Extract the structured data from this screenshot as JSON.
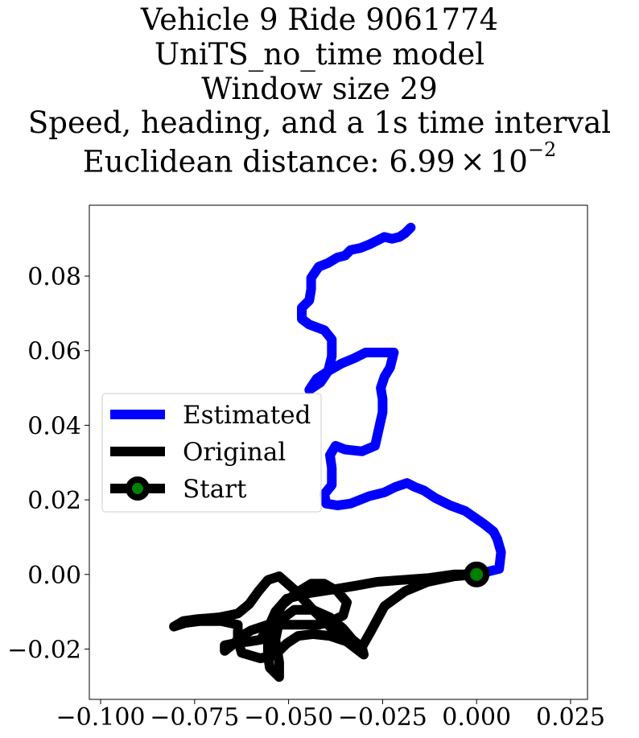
{
  "chart_data": {
    "type": "line",
    "title_lines": [
      "Vehicle 9 Ride 9061774",
      "UniTS_no_time model",
      "Window size 29",
      "Speed, heading, and a 1s time interval",
      "Euclidean distance: "
    ],
    "distance_mantissa": "6.99",
    "distance_times": "×",
    "distance_base": "10",
    "distance_exponent": "−2",
    "xlim": [
      -0.103,
      0.0295
    ],
    "ylim": [
      -0.0335,
      0.099
    ],
    "xticks": [
      -0.1,
      -0.075,
      -0.05,
      -0.025,
      0.0,
      0.025
    ],
    "xtick_labels": [
      "−0.100",
      "−0.075",
      "−0.050",
      "−0.025",
      "0.000",
      "0.025"
    ],
    "yticks": [
      -0.02,
      0.0,
      0.02,
      0.04,
      0.06,
      0.08
    ],
    "ytick_labels": [
      "−0.02",
      "0.00",
      "0.02",
      "0.04",
      "0.06",
      "0.08"
    ],
    "legend_position": "center-left",
    "legend": [
      {
        "label": "Estimated",
        "color": "#0000ff",
        "marker": "none"
      },
      {
        "label": "Original",
        "color": "#000000",
        "marker": "none"
      },
      {
        "label": "Start",
        "color": "#000000",
        "marker": "circle",
        "marker_face": "#008000"
      }
    ],
    "series": [
      {
        "name": "Estimated",
        "color": "#0000ff",
        "points": [
          [
            0.0,
            0.0
          ],
          [
            0.006,
            0.0015
          ],
          [
            0.0065,
            0.006
          ],
          [
            0.0055,
            0.0095
          ],
          [
            0.0045,
            0.0115
          ],
          [
            0.002,
            0.0135
          ],
          [
            -0.003,
            0.017
          ],
          [
            -0.007,
            0.0185
          ],
          [
            -0.011,
            0.0205
          ],
          [
            -0.014,
            0.0225
          ],
          [
            -0.0165,
            0.0235
          ],
          [
            -0.0185,
            0.0245
          ],
          [
            -0.0215,
            0.0235
          ],
          [
            -0.0245,
            0.022
          ],
          [
            -0.0285,
            0.021
          ],
          [
            -0.0335,
            0.019
          ],
          [
            -0.037,
            0.0185
          ],
          [
            -0.04,
            0.019
          ],
          [
            -0.0405,
            0.0215
          ],
          [
            -0.0385,
            0.024
          ],
          [
            -0.0385,
            0.0285
          ],
          [
            -0.039,
            0.032
          ],
          [
            -0.0375,
            0.0345
          ],
          [
            -0.035,
            0.0335
          ],
          [
            -0.0305,
            0.033
          ],
          [
            -0.027,
            0.0345
          ],
          [
            -0.026,
            0.039
          ],
          [
            -0.025,
            0.0435
          ],
          [
            -0.025,
            0.047
          ],
          [
            -0.0255,
            0.05
          ],
          [
            -0.0245,
            0.053
          ],
          [
            -0.023,
            0.0555
          ],
          [
            -0.022,
            0.0595
          ],
          [
            -0.025,
            0.0595
          ],
          [
            -0.0295,
            0.0595
          ],
          [
            -0.0325,
            0.058
          ],
          [
            -0.036,
            0.0565
          ],
          [
            -0.0395,
            0.0545
          ],
          [
            -0.0425,
            0.0525
          ],
          [
            -0.0445,
            0.0495
          ],
          [
            -0.0415,
            0.0515
          ],
          [
            -0.0395,
            0.0545
          ],
          [
            -0.0385,
            0.0585
          ],
          [
            -0.0385,
            0.063
          ],
          [
            -0.0405,
            0.0655
          ],
          [
            -0.0445,
            0.067
          ],
          [
            -0.0465,
            0.0685
          ],
          [
            -0.0465,
            0.0715
          ],
          [
            -0.0445,
            0.0735
          ],
          [
            -0.044,
            0.0765
          ],
          [
            -0.044,
            0.0795
          ],
          [
            -0.042,
            0.0825
          ],
          [
            -0.0395,
            0.0835
          ],
          [
            -0.037,
            0.085
          ],
          [
            -0.035,
            0.0855
          ],
          [
            -0.0335,
            0.087
          ],
          [
            -0.031,
            0.0875
          ],
          [
            -0.0285,
            0.0885
          ],
          [
            -0.0265,
            0.0895
          ],
          [
            -0.0245,
            0.0905
          ],
          [
            -0.0225,
            0.09
          ],
          [
            -0.0205,
            0.0905
          ],
          [
            -0.019,
            0.0915
          ],
          [
            -0.0175,
            0.093
          ]
        ]
      },
      {
        "name": "Original",
        "color": "#000000",
        "points": [
          [
            0.0,
            0.0
          ],
          [
            -0.006,
            0.0
          ],
          [
            -0.013,
            -0.001
          ],
          [
            -0.02,
            -0.0015
          ],
          [
            -0.0265,
            -0.002
          ],
          [
            -0.032,
            -0.003
          ],
          [
            -0.038,
            -0.004
          ],
          [
            -0.0445,
            -0.005
          ],
          [
            -0.0505,
            -0.0065
          ],
          [
            -0.0535,
            -0.01
          ],
          [
            -0.0555,
            -0.0145
          ],
          [
            -0.0575,
            -0.0175
          ],
          [
            -0.0605,
            -0.018
          ],
          [
            -0.0645,
            -0.0185
          ],
          [
            -0.067,
            -0.019
          ],
          [
            -0.067,
            -0.0205
          ],
          [
            -0.0645,
            -0.0185
          ],
          [
            -0.0625,
            -0.0165
          ],
          [
            -0.06,
            -0.015
          ],
          [
            -0.0555,
            -0.0135
          ],
          [
            -0.051,
            -0.0135
          ],
          [
            -0.0465,
            -0.0135
          ],
          [
            -0.042,
            -0.0135
          ],
          [
            -0.0385,
            -0.0125
          ],
          [
            -0.0355,
            -0.011
          ],
          [
            -0.0345,
            -0.0075
          ],
          [
            -0.037,
            -0.0045
          ],
          [
            -0.0405,
            -0.0025
          ],
          [
            -0.044,
            -0.0025
          ],
          [
            -0.048,
            -0.005
          ],
          [
            -0.0515,
            -0.008
          ],
          [
            -0.0545,
            -0.0125
          ],
          [
            -0.0555,
            -0.0175
          ],
          [
            -0.0555,
            -0.0215
          ],
          [
            -0.055,
            -0.025
          ],
          [
            -0.0525,
            -0.0275
          ],
          [
            -0.0525,
            -0.0235
          ],
          [
            -0.0535,
            -0.0175
          ],
          [
            -0.0525,
            -0.0125
          ],
          [
            -0.0485,
            -0.0095
          ],
          [
            -0.0435,
            -0.0095
          ],
          [
            -0.039,
            -0.0115
          ],
          [
            -0.0355,
            -0.0145
          ],
          [
            -0.033,
            -0.0175
          ],
          [
            -0.0305,
            -0.0195
          ],
          [
            -0.03,
            -0.0215
          ],
          [
            -0.0345,
            -0.018
          ],
          [
            -0.039,
            -0.014
          ],
          [
            -0.0435,
            -0.0095
          ],
          [
            -0.048,
            -0.0045
          ],
          [
            -0.0525,
            -0.0005
          ],
          [
            -0.0555,
            -0.0015
          ],
          [
            -0.058,
            -0.0045
          ],
          [
            -0.0605,
            -0.008
          ],
          [
            -0.0635,
            -0.0105
          ],
          [
            -0.0685,
            -0.0115
          ],
          [
            -0.0745,
            -0.012
          ],
          [
            -0.078,
            -0.0125
          ],
          [
            -0.0805,
            -0.014
          ],
          [
            -0.0775,
            -0.013
          ],
          [
            -0.0735,
            -0.0125
          ],
          [
            -0.068,
            -0.0125
          ],
          [
            -0.0635,
            -0.0135
          ],
          [
            -0.0635,
            -0.0175
          ],
          [
            -0.0625,
            -0.021
          ],
          [
            -0.0575,
            -0.0225
          ],
          [
            -0.0535,
            -0.0215
          ],
          [
            -0.0505,
            -0.0185
          ],
          [
            -0.0475,
            -0.0165
          ],
          [
            -0.0435,
            -0.016
          ],
          [
            -0.039,
            -0.0165
          ],
          [
            -0.0345,
            -0.018
          ],
          [
            -0.0305,
            -0.0195
          ],
          [
            -0.028,
            -0.015
          ],
          [
            -0.0245,
            -0.0085
          ],
          [
            -0.019,
            -0.0045
          ],
          [
            -0.013,
            -0.002
          ],
          [
            -0.006,
            -0.0005
          ],
          [
            0.0,
            0.0
          ]
        ]
      }
    ],
    "start_point": [
      0.0,
      0.0
    ]
  }
}
